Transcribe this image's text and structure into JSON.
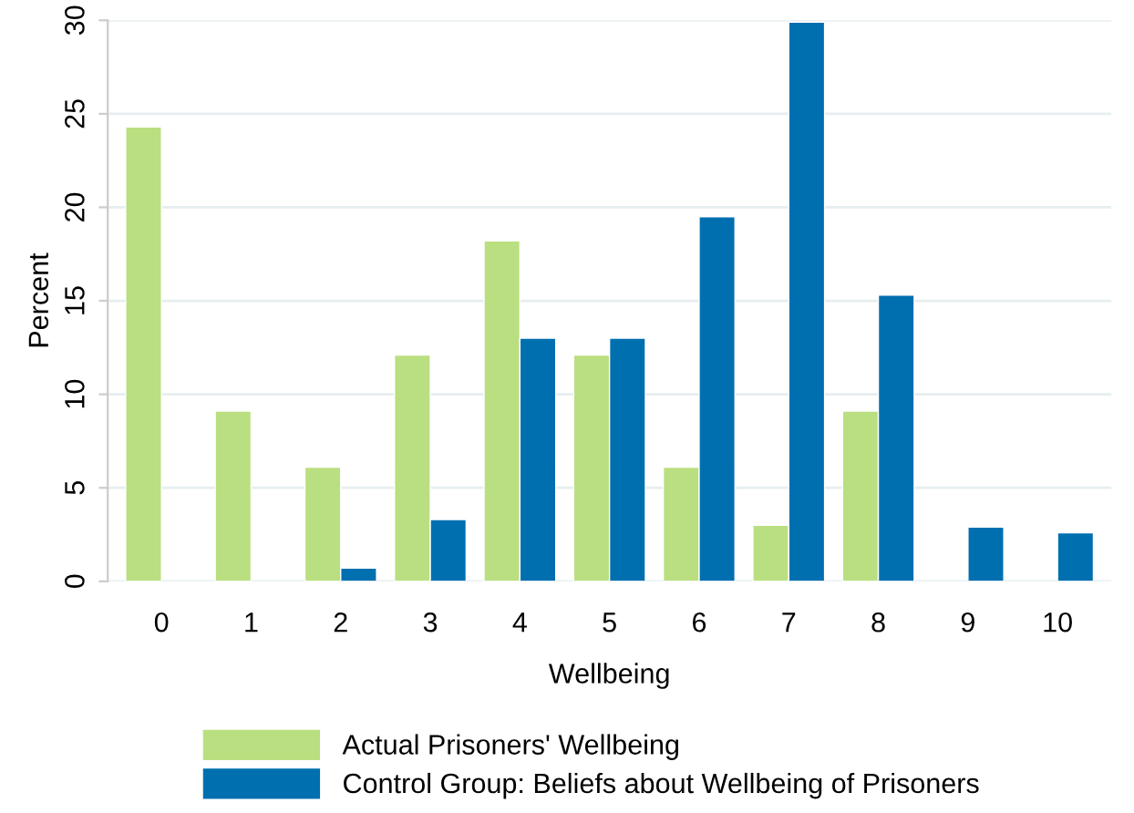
{
  "chart_data": {
    "type": "bar",
    "xlabel": "Wellbeing",
    "ylabel": "Percent",
    "categories": [
      "0",
      "1",
      "2",
      "3",
      "4",
      "5",
      "6",
      "7",
      "8",
      "9",
      "10"
    ],
    "series": [
      {
        "name": "Actual Prisoners' Wellbeing",
        "color": "#badf80",
        "values": [
          24.3,
          9.1,
          6.1,
          12.1,
          18.2,
          12.1,
          6.1,
          3.0,
          9.1,
          null,
          null
        ]
      },
      {
        "name": "Control Group: Beliefs about Wellbeing of Prisoners",
        "color": "#006fb0",
        "values": [
          null,
          null,
          0.7,
          3.3,
          13.0,
          13.0,
          19.5,
          29.9,
          15.3,
          2.9,
          2.6
        ]
      }
    ],
    "ylim": [
      0,
      30
    ],
    "yticks": [
      0,
      5,
      10,
      15,
      20,
      25,
      30
    ],
    "grid": "y",
    "legend": "bottom"
  }
}
